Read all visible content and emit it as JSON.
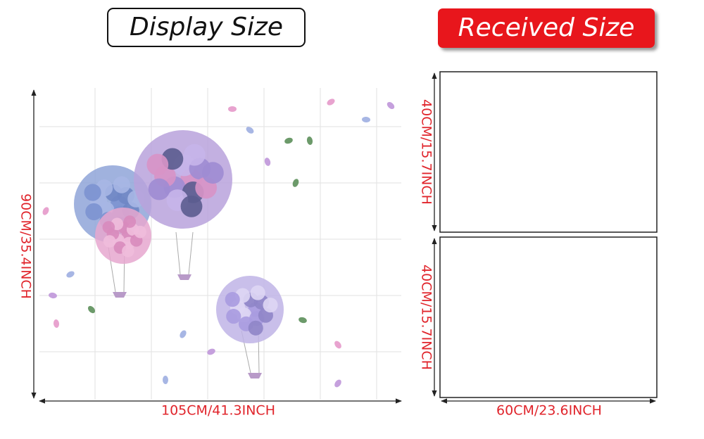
{
  "display_title": "Display Size",
  "received_title": "Received Size",
  "display_width": "105CM/41.3INCH",
  "display_height": "90CM/35.4INCH",
  "received_width": "60CM/23.6INCH",
  "received_height_top": "40CM/15.7INCH",
  "received_height_bottom": "40CM/15.7INCH"
}
